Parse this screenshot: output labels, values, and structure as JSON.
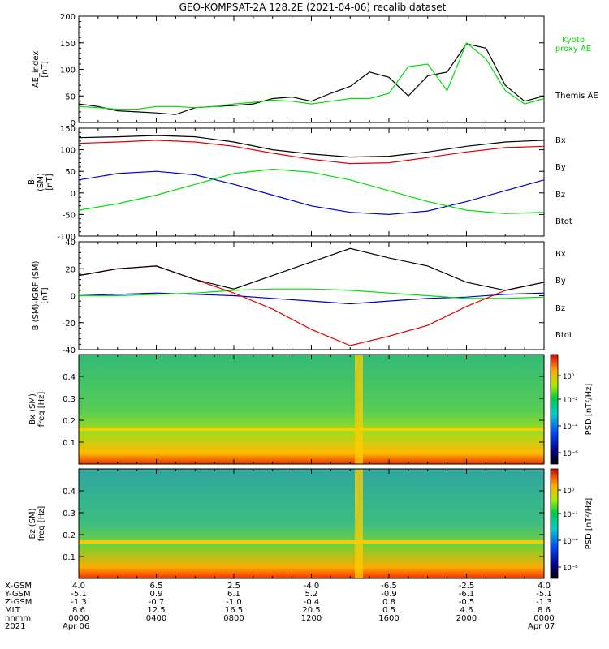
{
  "title": "GEO-KOMPSAT-2A 128.2E (2021-04-06) recalib dataset",
  "colors": {
    "black": "#000000",
    "green": "#00dd00",
    "red": "#dd0000",
    "blue": "#0000cc"
  },
  "chart_data": [
    {
      "type": "line",
      "ylabel": [
        "AE_index",
        "[nT]"
      ],
      "ylim": [
        0,
        200
      ],
      "yticks": [
        0,
        50,
        100,
        150,
        200
      ],
      "x_hours": [
        0,
        1,
        2,
        3,
        4,
        5,
        6,
        7,
        8,
        9,
        10,
        11,
        12,
        13,
        14,
        15,
        16,
        17,
        18,
        19,
        20,
        21,
        22,
        23,
        24
      ],
      "series": [
        {
          "name": "Themis AE",
          "color": "#000000",
          "values": [
            35,
            30,
            22,
            20,
            18,
            15,
            28,
            30,
            32,
            35,
            45,
            48,
            40,
            55,
            68,
            95,
            85,
            50,
            88,
            95,
            148,
            140,
            70,
            40,
            50
          ]
        },
        {
          "name": "Kyoto proxy AE",
          "color": "#00dd00",
          "label_lines": [
            "Kyoto",
            "proxy AE"
          ],
          "values": [
            30,
            28,
            25,
            25,
            30,
            30,
            28,
            30,
            35,
            38,
            42,
            40,
            35,
            40,
            45,
            45,
            55,
            105,
            110,
            60,
            150,
            120,
            60,
            35,
            45
          ]
        }
      ]
    },
    {
      "type": "line",
      "ylabel": [
        "B",
        "(SM)",
        "[nT]"
      ],
      "ylim": [
        -100,
        150
      ],
      "yticks": [
        -100,
        -50,
        0,
        50,
        100,
        150
      ],
      "x_hours": [
        0,
        2,
        4,
        6,
        8,
        10,
        12,
        14,
        16,
        18,
        20,
        22,
        24
      ],
      "series": [
        {
          "name": "Bx",
          "color": "#0000cc",
          "values": [
            30,
            45,
            50,
            42,
            20,
            -5,
            -30,
            -45,
            -50,
            -42,
            -20,
            5,
            30
          ]
        },
        {
          "name": "By",
          "color": "#00dd00",
          "values": [
            -40,
            -25,
            -5,
            20,
            45,
            55,
            48,
            30,
            5,
            -20,
            -40,
            -48,
            -45
          ]
        },
        {
          "name": "Bz",
          "color": "#dd0000",
          "values": [
            115,
            118,
            122,
            118,
            108,
            92,
            78,
            68,
            70,
            82,
            95,
            105,
            108
          ]
        },
        {
          "name": "Btot",
          "color": "#000000",
          "values": [
            128,
            130,
            133,
            130,
            118,
            100,
            90,
            83,
            85,
            95,
            108,
            118,
            122
          ]
        }
      ]
    },
    {
      "type": "line",
      "ylabel": [
        "B (SM)-IGRF (SM)",
        "[nT]"
      ],
      "ylim": [
        -40,
        40
      ],
      "yticks": [
        -40,
        -20,
        0,
        20,
        40
      ],
      "x_hours": [
        0,
        2,
        4,
        6,
        8,
        10,
        12,
        14,
        16,
        18,
        20,
        22,
        24
      ],
      "series": [
        {
          "name": "Bx",
          "color": "#0000cc",
          "values": [
            0,
            1,
            2,
            1,
            0,
            -2,
            -4,
            -6,
            -4,
            -2,
            -1,
            1,
            2
          ]
        },
        {
          "name": "By",
          "color": "#00dd00",
          "values": [
            0,
            0,
            1,
            2,
            4,
            5,
            5,
            4,
            2,
            0,
            -2,
            -2,
            -1
          ]
        },
        {
          "name": "Bz",
          "color": "#dd0000",
          "values": [
            15,
            20,
            22,
            12,
            2,
            -10,
            -25,
            -37,
            -30,
            -22,
            -8,
            4,
            10
          ]
        },
        {
          "name": "Btot",
          "color": "#000000",
          "values": [
            15,
            20,
            22,
            12,
            5,
            15,
            25,
            35,
            28,
            22,
            10,
            4,
            10
          ]
        }
      ]
    },
    {
      "type": "heatmap",
      "ylabel": [
        "Bx (SM)",
        "freq [Hz]"
      ],
      "ylim": [
        0,
        0.5
      ],
      "yticks": [
        0.1,
        0.2,
        0.3,
        0.4
      ],
      "colorbar": {
        "label": "PSD [nT²/Hz]",
        "ticks": [
          "10⁰",
          "10⁻²",
          "10⁻⁴",
          "10⁻⁶"
        ]
      }
    },
    {
      "type": "heatmap",
      "ylabel": [
        "Bz (SM)",
        "freq [Hz]"
      ],
      "ylim": [
        0,
        0.5
      ],
      "yticks": [
        0.1,
        0.2,
        0.3,
        0.4
      ],
      "colorbar": {
        "label": "PSD [nT²/Hz]",
        "ticks": [
          "10⁰",
          "10⁻²",
          "10⁻⁴",
          "10⁻⁶"
        ]
      }
    }
  ],
  "x_axis": {
    "row_labels": [
      "X-GSM",
      "Y-GSM",
      "Z-GSM",
      "MLT",
      "hhmm",
      "2021"
    ],
    "columns": [
      [
        "4.0",
        "-5.1",
        "-1.3",
        "8.6",
        "0000",
        "Apr 06"
      ],
      [
        "6.5",
        "0.9",
        "-0.7",
        "12.5",
        "0400",
        ""
      ],
      [
        "2.5",
        "6.1",
        "-1.0",
        "16.5",
        "0800",
        ""
      ],
      [
        "-4.0",
        "5.2",
        "-0.4",
        "20.5",
        "1200",
        ""
      ],
      [
        "-6.5",
        "-0.9",
        "0.8",
        "0.5",
        "1600",
        ""
      ],
      [
        "-2.5",
        "-6.1",
        "-0.5",
        "4.6",
        "2000",
        ""
      ],
      [
        "4.0",
        "-5.1",
        "-1.3",
        "8.6",
        "0000",
        "Apr 07"
      ]
    ]
  }
}
